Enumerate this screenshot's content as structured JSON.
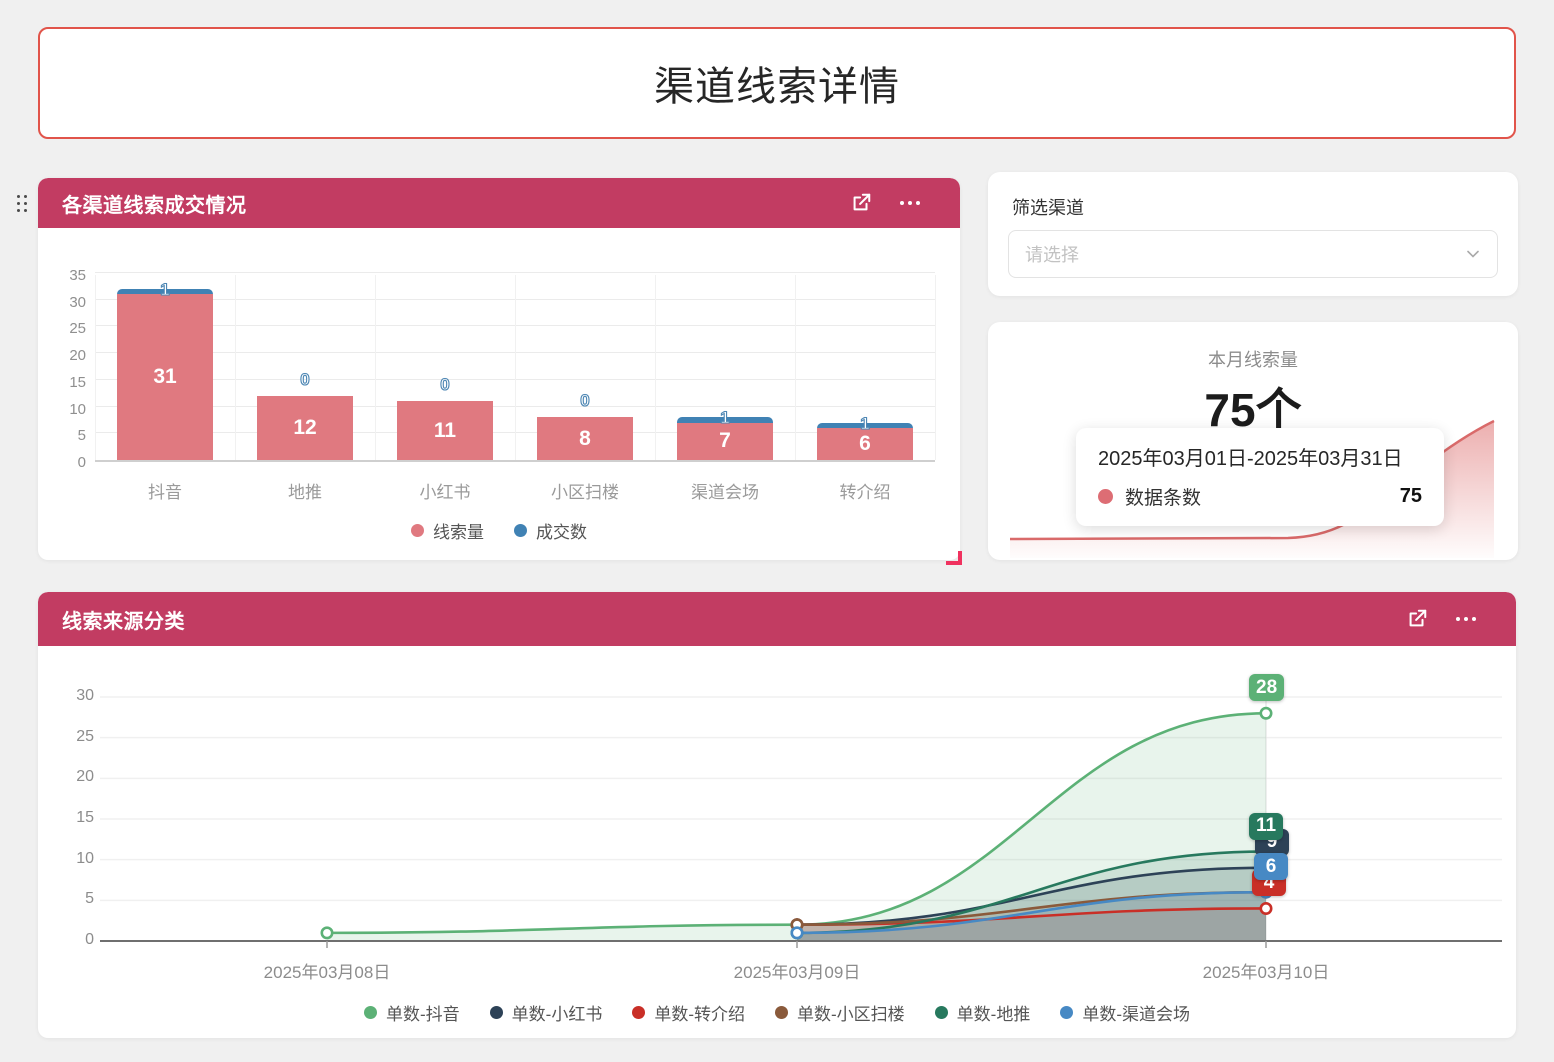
{
  "page_title": "渠道线索详情",
  "bar_card": {
    "title": "各渠道线索成交情况",
    "icons": [
      "export-icon",
      "more-icon"
    ],
    "chart": {
      "type": "bar",
      "categories": [
        "抖音",
        "地推",
        "小红书",
        "小区扫楼",
        "渠道会场",
        "转介绍"
      ],
      "series": [
        {
          "name": "线索量",
          "color": "#e07980",
          "values": [
            31,
            12,
            11,
            8,
            7,
            6
          ]
        },
        {
          "name": "成交数",
          "color": "#4082b4",
          "values": [
            1,
            0,
            0,
            0,
            1,
            1
          ]
        }
      ],
      "y_ticks": [
        0,
        5,
        10,
        15,
        20,
        25,
        30,
        35
      ],
      "ylim": [
        0,
        35
      ],
      "legend_position": "bottom"
    }
  },
  "filter_card": {
    "label": "筛选渠道",
    "placeholder": "请选择"
  },
  "stat_card": {
    "title": "本月线索量",
    "value": "75个",
    "tooltip": {
      "range": "2025年03月01日-2025年03月31日",
      "series": "数据条数",
      "count": "75"
    },
    "sparkline_color": "#d96a6a"
  },
  "line_card": {
    "title": "线索来源分类",
    "icons": [
      "export-icon",
      "more-icon"
    ],
    "chart": {
      "type": "line",
      "x": [
        "2025年03月08日",
        "2025年03月09日",
        "2025年03月10日"
      ],
      "y_ticks": [
        0,
        5,
        10,
        15,
        20,
        25,
        30
      ],
      "ylim": [
        0,
        33
      ],
      "legend_position": "bottom",
      "series": [
        {
          "name": "单数-抖音",
          "color": "#5cb176",
          "points": [
            [
              0,
              1
            ],
            [
              1,
              2
            ],
            [
              2,
              28
            ]
          ],
          "end_label": "28"
        },
        {
          "name": "单数-小红书",
          "color": "#2d4257",
          "points": [
            [
              1,
              2
            ],
            [
              2,
              9
            ]
          ],
          "end_label": "9"
        },
        {
          "name": "单数-转介绍",
          "color": "#c92f27",
          "points": [
            [
              1,
              2
            ],
            [
              2,
              4
            ]
          ],
          "end_label": "4"
        },
        {
          "name": "单数-小区扫楼",
          "color": "#8a5a3b",
          "points": [
            [
              1,
              2
            ],
            [
              2,
              6
            ]
          ],
          "end_label": ""
        },
        {
          "name": "单数-地推",
          "color": "#27795e",
          "points": [
            [
              1,
              1
            ],
            [
              2,
              11
            ]
          ],
          "end_label": "11"
        },
        {
          "name": "单数-渠道会场",
          "color": "#4789c4",
          "points": [
            [
              1,
              1
            ],
            [
              2,
              6
            ]
          ],
          "end_label": "6"
        }
      ]
    }
  }
}
